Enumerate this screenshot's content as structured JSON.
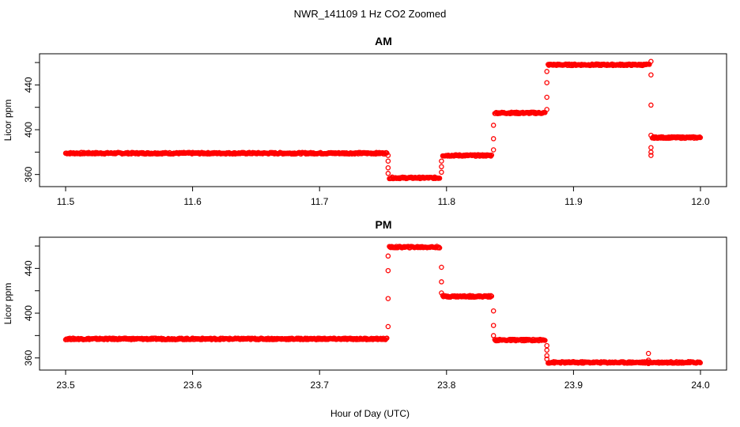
{
  "figure": {
    "title": "NWR_141109  1 Hz CO2 Zoomed",
    "xlabel": "Hour of Day (UTC)"
  },
  "chart_data": [
    {
      "type": "scatter",
      "title": "AM",
      "ylabel": "Licor ppm",
      "xlim": [
        11.5,
        12.0
      ],
      "ylim": [
        352,
        465
      ],
      "xticks": [
        11.5,
        11.6,
        11.7,
        11.8,
        11.9,
        12.0
      ],
      "xtick_labels": [
        "11.5",
        "11.6",
        "11.7",
        "11.8",
        "11.9",
        "12.0"
      ],
      "yticks": [
        360,
        400,
        440
      ],
      "ytick_labels": [
        "360",
        "400",
        "440"
      ],
      "marker_color": "#ff0000",
      "marker": "open-circle",
      "grid": false,
      "segments": [
        {
          "x_start": 11.5,
          "x_end": 11.753,
          "y": 379
        },
        {
          "x_start": 11.755,
          "x_end": 11.795,
          "y": 357
        },
        {
          "x_start": 11.797,
          "x_end": 11.836,
          "y": 377
        },
        {
          "x_start": 11.838,
          "x_end": 11.878,
          "y": 415
        },
        {
          "x_start": 11.88,
          "x_end": 11.96,
          "y": 458
        },
        {
          "x_start": 11.962,
          "x_end": 12.0,
          "y": 393
        }
      ],
      "transitions": [
        {
          "x": 11.754,
          "y": [
            377,
            372,
            366,
            361
          ]
        },
        {
          "x": 11.796,
          "y": [
            362,
            367,
            372
          ]
        },
        {
          "x": 11.837,
          "y": [
            382,
            392,
            404
          ]
        },
        {
          "x": 11.879,
          "y": [
            418,
            429,
            442,
            452
          ]
        },
        {
          "x": 11.961,
          "y": [
            461,
            449,
            422,
            395,
            384,
            380,
            377
          ]
        }
      ]
    },
    {
      "type": "scatter",
      "title": "PM",
      "ylabel": "Licor ppm",
      "xlim": [
        23.5,
        24.0
      ],
      "ylim": [
        352,
        465
      ],
      "xticks": [
        23.5,
        23.6,
        23.7,
        23.8,
        23.9,
        24.0
      ],
      "xtick_labels": [
        "23.5",
        "23.6",
        "23.7",
        "23.8",
        "23.9",
        "24.0"
      ],
      "yticks": [
        360,
        400,
        440
      ],
      "ytick_labels": [
        "360",
        "400",
        "440"
      ],
      "marker_color": "#ff0000",
      "marker": "open-circle",
      "grid": false,
      "segments": [
        {
          "x_start": 23.5,
          "x_end": 23.753,
          "y": 377
        },
        {
          "x_start": 23.755,
          "x_end": 23.795,
          "y": 459
        },
        {
          "x_start": 23.797,
          "x_end": 23.836,
          "y": 415
        },
        {
          "x_start": 23.838,
          "x_end": 23.878,
          "y": 376
        },
        {
          "x_start": 23.88,
          "x_end": 24.0,
          "y": 356
        }
      ],
      "transitions": [
        {
          "x": 23.754,
          "y": [
            388,
            413,
            438,
            451
          ]
        },
        {
          "x": 23.796,
          "y": [
            441,
            428,
            418
          ]
        },
        {
          "x": 23.837,
          "y": [
            402,
            389,
            380
          ]
        },
        {
          "x": 23.879,
          "y": [
            371,
            367,
            362,
            359
          ]
        },
        {
          "x": 23.959,
          "y": [
            364,
            358,
            355
          ]
        }
      ]
    }
  ]
}
